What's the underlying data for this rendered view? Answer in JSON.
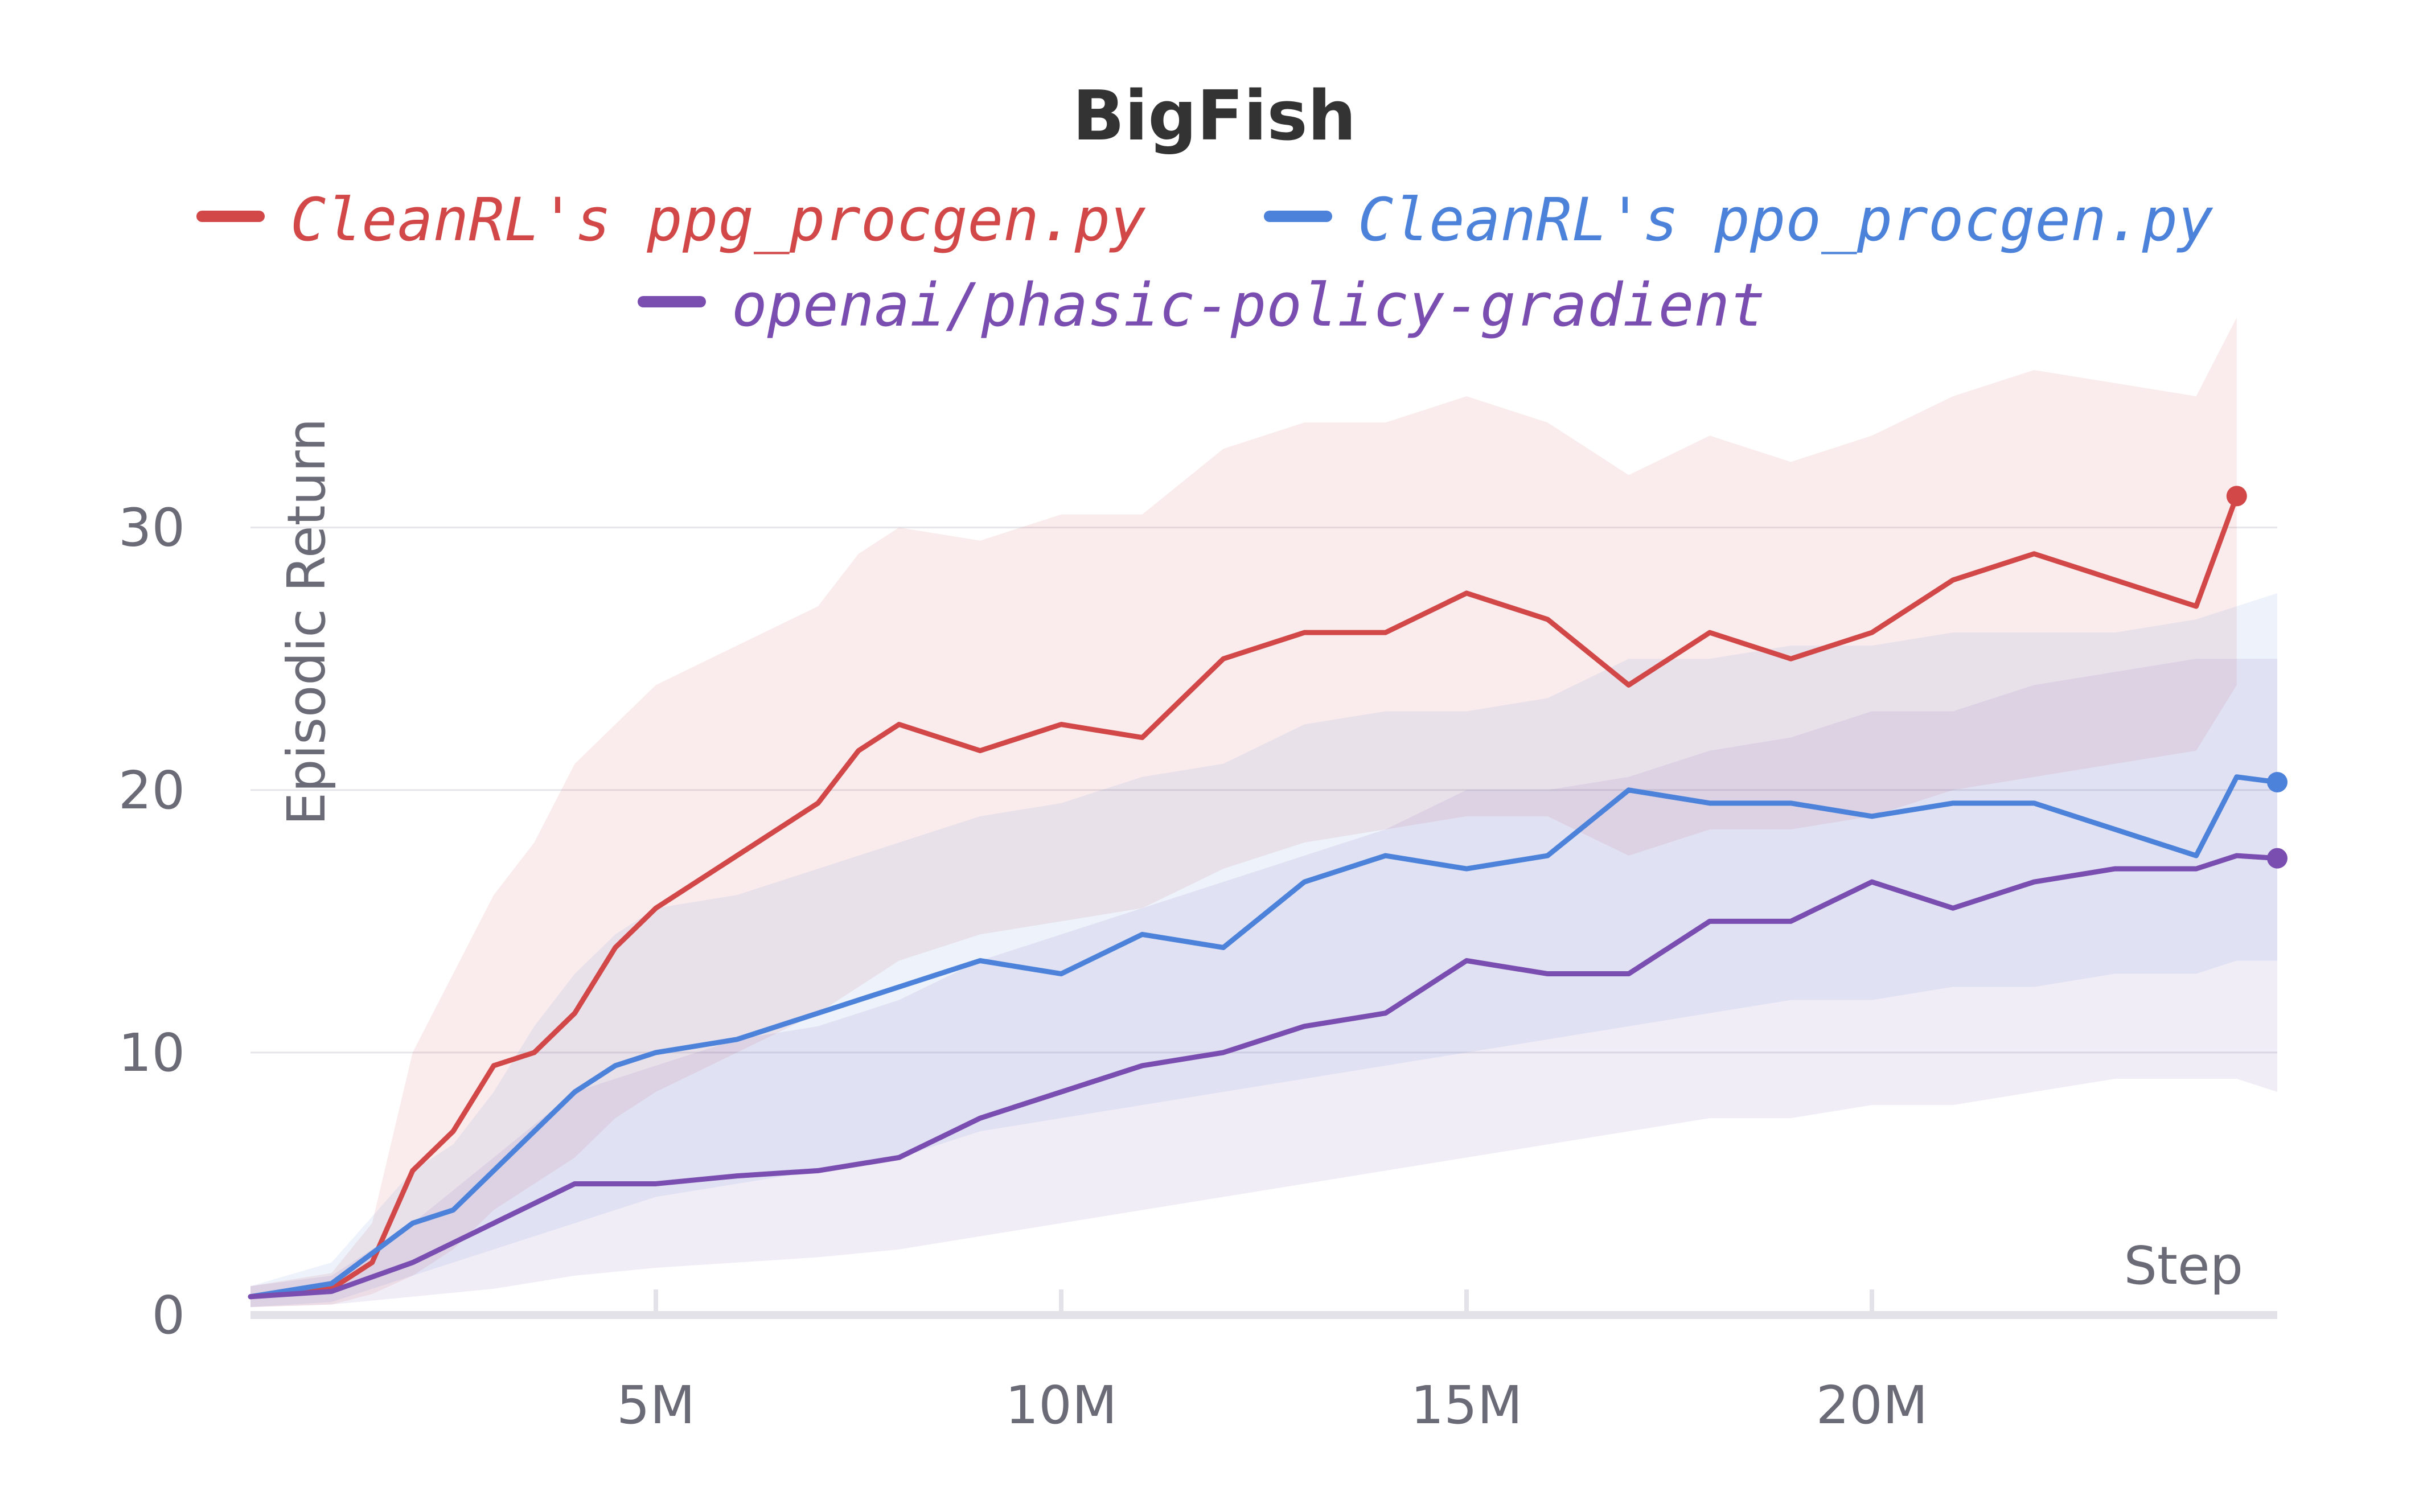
{
  "chart_data": {
    "type": "line",
    "title": "BigFish",
    "xlabel": "Step",
    "ylabel": "Episodic Return",
    "xlim": [
      0,
      25000000
    ],
    "ylim": [
      0,
      36
    ],
    "x_ticks": [
      5000000,
      10000000,
      15000000,
      20000000
    ],
    "x_tick_labels": [
      "5M",
      "10M",
      "15M",
      "20M"
    ],
    "y_ticks": [
      0,
      10,
      20,
      30
    ],
    "y_tick_labels": [
      "0",
      "10",
      "20",
      "30"
    ],
    "grid": "horizontal",
    "legend_position": "top",
    "series": [
      {
        "name": "CleanRL's ppg_procgen.py",
        "color": "#d24848",
        "x": [
          0,
          1000000,
          1500000,
          2000000,
          2500000,
          3000000,
          3500000,
          4000000,
          4500000,
          5000000,
          6000000,
          7000000,
          7500000,
          8000000,
          9000000,
          10000000,
          11000000,
          12000000,
          13000000,
          14000000,
          15000000,
          16000000,
          17000000,
          18000000,
          19000000,
          20000000,
          21000000,
          22000000,
          23000000,
          24000000,
          24500000
        ],
        "values": [
          0.7,
          1.0,
          2.0,
          5.5,
          7.0,
          9.5,
          10.0,
          11.5,
          14.0,
          15.5,
          17.5,
          19.5,
          21.5,
          22.5,
          21.5,
          22.5,
          22.0,
          25.0,
          26.0,
          26.0,
          27.5,
          26.5,
          24.0,
          26.0,
          25.0,
          26.0,
          28.0,
          29.0,
          28.0,
          27.0,
          31.2
        ],
        "lower": [
          0.3,
          0.4,
          0.8,
          1.5,
          2.5,
          4.0,
          5.0,
          6.0,
          7.5,
          8.5,
          10.0,
          11.5,
          12.5,
          13.5,
          14.5,
          15.0,
          15.5,
          17.0,
          18.0,
          18.5,
          19.0,
          19.0,
          17.5,
          18.5,
          18.5,
          19.0,
          20.0,
          20.5,
          21.0,
          21.5,
          24.0
        ],
        "upper": [
          1.1,
          1.6,
          3.5,
          10.0,
          13.0,
          16.0,
          18.0,
          21.0,
          22.5,
          24.0,
          25.5,
          27.0,
          29.0,
          30.0,
          29.5,
          30.5,
          30.5,
          33.0,
          34.0,
          34.0,
          35.0,
          34.0,
          32.0,
          33.5,
          32.5,
          33.5,
          35.0,
          36.0,
          35.5,
          35.0,
          38.0
        ]
      },
      {
        "name": "CleanRL's ppo_procgen.py",
        "color": "#4c82d9",
        "x": [
          0,
          1000000,
          2000000,
          2500000,
          3000000,
          3500000,
          4000000,
          4500000,
          5000000,
          6000000,
          7000000,
          8000000,
          9000000,
          10000000,
          11000000,
          12000000,
          13000000,
          14000000,
          15000000,
          16000000,
          17000000,
          18000000,
          19000000,
          20000000,
          21000000,
          22000000,
          23000000,
          24000000,
          24500000,
          25000000
        ],
        "values": [
          0.7,
          1.2,
          3.5,
          4.0,
          5.5,
          7.0,
          8.5,
          9.5,
          10.0,
          10.5,
          11.5,
          12.5,
          13.5,
          13.0,
          14.5,
          14.0,
          16.5,
          17.5,
          17.0,
          17.5,
          20.0,
          19.5,
          19.5,
          19.0,
          19.5,
          19.5,
          18.5,
          17.5,
          20.5,
          20.3
        ],
        "lower": [
          0.3,
          0.5,
          1.5,
          2.0,
          2.5,
          3.0,
          3.5,
          4.0,
          4.5,
          5.0,
          5.5,
          6.0,
          7.0,
          7.5,
          8.0,
          8.5,
          9.0,
          9.5,
          10.0,
          10.5,
          11.0,
          11.5,
          12.0,
          12.0,
          12.5,
          12.5,
          13.0,
          13.0,
          13.5,
          13.5
        ],
        "upper": [
          1.1,
          2.0,
          5.5,
          6.5,
          8.5,
          11.0,
          13.0,
          14.5,
          15.5,
          16.0,
          17.0,
          18.0,
          19.0,
          19.5,
          20.5,
          21.0,
          22.5,
          23.0,
          23.0,
          23.5,
          25.0,
          25.0,
          25.5,
          25.5,
          26.0,
          26.0,
          26.0,
          26.5,
          27.0,
          27.5
        ]
      },
      {
        "name": "openai/phasic-policy-gradient",
        "color": "#7a4db0",
        "x": [
          0,
          1000000,
          2000000,
          3000000,
          4000000,
          5000000,
          6000000,
          7000000,
          8000000,
          9000000,
          10000000,
          11000000,
          12000000,
          13000000,
          14000000,
          15000000,
          16000000,
          17000000,
          18000000,
          19000000,
          20000000,
          21000000,
          22000000,
          23000000,
          24000000,
          24500000,
          25000000
        ],
        "values": [
          0.7,
          0.9,
          2.0,
          3.5,
          5.0,
          5.0,
          5.3,
          5.5,
          6.0,
          7.5,
          8.5,
          9.5,
          10.0,
          11.0,
          11.5,
          13.5,
          13.0,
          13.0,
          15.0,
          15.0,
          16.5,
          15.5,
          16.5,
          17.0,
          17.0,
          17.5,
          17.4
        ],
        "lower": [
          0.3,
          0.4,
          0.7,
          1.0,
          1.5,
          1.8,
          2.0,
          2.2,
          2.5,
          3.0,
          3.5,
          4.0,
          4.5,
          5.0,
          5.5,
          6.0,
          6.5,
          7.0,
          7.5,
          7.5,
          8.0,
          8.0,
          8.5,
          9.0,
          9.0,
          9.0,
          8.5
        ],
        "upper": [
          1.1,
          1.5,
          3.5,
          6.0,
          8.5,
          9.5,
          10.5,
          11.0,
          12.0,
          13.5,
          14.5,
          15.5,
          16.5,
          17.5,
          18.5,
          20.0,
          20.0,
          20.5,
          21.5,
          22.0,
          23.0,
          23.0,
          24.0,
          24.5,
          25.0,
          25.0,
          25.0
        ]
      }
    ]
  }
}
